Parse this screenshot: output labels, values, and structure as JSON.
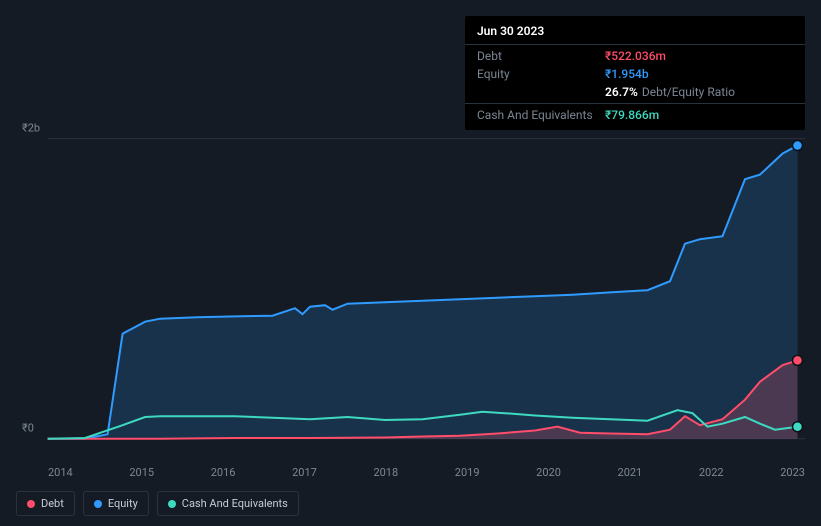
{
  "tooltip": {
    "date": "Jun 30 2023",
    "rows": [
      {
        "label": "Debt",
        "value": "₹522.036m",
        "color": "#ff4d6a"
      },
      {
        "label": "Equity",
        "value": "₹1.954b",
        "color": "#2f9bff"
      }
    ],
    "ratio": {
      "value": "26.7%",
      "suffix": "Debt/Equity Ratio"
    },
    "cash_row": {
      "label": "Cash And Equivalents",
      "value": "₹79.866m",
      "color": "#3dd9c1"
    }
  },
  "chart": {
    "type": "area",
    "background": "#151b24",
    "grid_color": "#2a323d",
    "text_color": "#7b8794",
    "y_axis": {
      "labels": [
        "₹2b",
        "₹0"
      ],
      "positions_pct": [
        4,
        92
      ]
    },
    "x_axis": {
      "labels": [
        "2014",
        "2015",
        "2016",
        "2017",
        "2018",
        "2019",
        "2020",
        "2021",
        "2022",
        "2023"
      ]
    },
    "plot": {
      "x_start_pct": 4,
      "x_end_pct": 100,
      "y_top_pct": 4,
      "y_zero_pct": 92
    },
    "series": {
      "equity": {
        "color": "#2f9bff",
        "fill": "rgba(47,155,255,0.18)",
        "line_width": 2,
        "points": [
          [
            2013.5,
            0
          ],
          [
            2014.0,
            0
          ],
          [
            2014.3,
            30
          ],
          [
            2014.5,
            700
          ],
          [
            2014.8,
            780
          ],
          [
            2015.0,
            800
          ],
          [
            2015.5,
            810
          ],
          [
            2016.0,
            815
          ],
          [
            2016.5,
            820
          ],
          [
            2016.8,
            870
          ],
          [
            2016.9,
            830
          ],
          [
            2017.0,
            880
          ],
          [
            2017.2,
            890
          ],
          [
            2017.3,
            860
          ],
          [
            2017.5,
            900
          ],
          [
            2018.0,
            910
          ],
          [
            2018.5,
            920
          ],
          [
            2019.0,
            930
          ],
          [
            2019.5,
            940
          ],
          [
            2020.0,
            950
          ],
          [
            2020.5,
            960
          ],
          [
            2021.0,
            975
          ],
          [
            2021.5,
            990
          ],
          [
            2021.8,
            1050
          ],
          [
            2022.0,
            1300
          ],
          [
            2022.2,
            1330
          ],
          [
            2022.5,
            1350
          ],
          [
            2022.8,
            1730
          ],
          [
            2023.0,
            1760
          ],
          [
            2023.3,
            1900
          ],
          [
            2023.5,
            1954
          ]
        ]
      },
      "debt": {
        "color": "#ff4d6a",
        "fill": "rgba(255,77,106,0.22)",
        "line_width": 2,
        "points": [
          [
            2013.5,
            0
          ],
          [
            2015.0,
            0
          ],
          [
            2016.0,
            5
          ],
          [
            2017.0,
            5
          ],
          [
            2018.0,
            8
          ],
          [
            2018.5,
            15
          ],
          [
            2019.0,
            20
          ],
          [
            2019.5,
            35
          ],
          [
            2020.0,
            55
          ],
          [
            2020.3,
            80
          ],
          [
            2020.6,
            40
          ],
          [
            2021.0,
            35
          ],
          [
            2021.5,
            30
          ],
          [
            2021.8,
            60
          ],
          [
            2022.0,
            150
          ],
          [
            2022.2,
            90
          ],
          [
            2022.5,
            130
          ],
          [
            2022.8,
            260
          ],
          [
            2023.0,
            380
          ],
          [
            2023.3,
            490
          ],
          [
            2023.5,
            522
          ]
        ]
      },
      "cash": {
        "color": "#3dd9c1",
        "fill": "none",
        "line_width": 2,
        "points": [
          [
            2013.5,
            0
          ],
          [
            2014.0,
            5
          ],
          [
            2014.5,
            90
          ],
          [
            2014.8,
            145
          ],
          [
            2015.0,
            150
          ],
          [
            2015.5,
            150
          ],
          [
            2016.0,
            150
          ],
          [
            2016.5,
            140
          ],
          [
            2017.0,
            130
          ],
          [
            2017.5,
            145
          ],
          [
            2018.0,
            125
          ],
          [
            2018.5,
            130
          ],
          [
            2019.0,
            160
          ],
          [
            2019.3,
            180
          ],
          [
            2019.6,
            170
          ],
          [
            2020.0,
            155
          ],
          [
            2020.5,
            140
          ],
          [
            2021.0,
            130
          ],
          [
            2021.5,
            120
          ],
          [
            2021.9,
            190
          ],
          [
            2022.1,
            170
          ],
          [
            2022.3,
            80
          ],
          [
            2022.5,
            100
          ],
          [
            2022.8,
            145
          ],
          [
            2023.0,
            100
          ],
          [
            2023.2,
            60
          ],
          [
            2023.5,
            80
          ]
        ]
      }
    },
    "domain": {
      "x_min": 2013.5,
      "x_max": 2023.6,
      "y_min": 0,
      "y_max": 2000
    },
    "end_dots": [
      {
        "color": "#2f9bff",
        "series": "equity"
      },
      {
        "color": "#ff4d6a",
        "series": "debt"
      },
      {
        "color": "#3dd9c1",
        "series": "cash"
      }
    ]
  },
  "legend": [
    {
      "label": "Debt",
      "color": "#ff4d6a"
    },
    {
      "label": "Equity",
      "color": "#2f9bff"
    },
    {
      "label": "Cash And Equivalents",
      "color": "#3dd9c1"
    }
  ]
}
